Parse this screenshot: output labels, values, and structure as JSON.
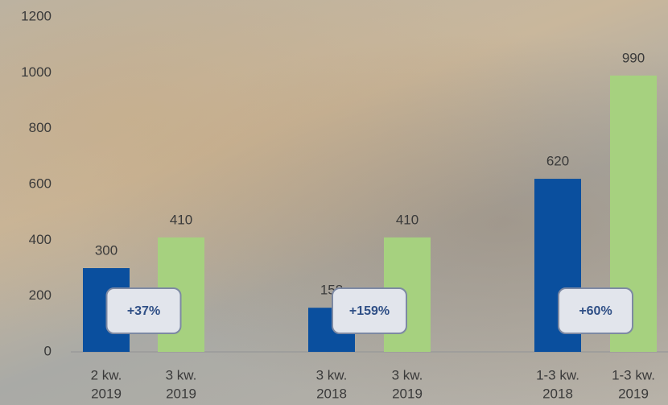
{
  "chart_data": {
    "type": "bar",
    "categories": [
      [
        "2 kw.",
        "2019"
      ],
      [
        "3 kw.",
        "2019"
      ],
      [
        "3 kw.",
        "2018"
      ],
      [
        "3 kw.",
        "2019"
      ],
      [
        "1-3 kw.",
        "2018"
      ],
      [
        "1-3 kw.",
        "2019"
      ]
    ],
    "values": [
      300,
      410,
      158,
      410,
      620,
      990
    ],
    "colors": [
      "#0a4f9e",
      "#a6d17f",
      "#0a4f9e",
      "#a6d17f",
      "#0a4f9e",
      "#a6d17f"
    ],
    "annotations": [
      "+37%",
      "+159%",
      "+60%"
    ],
    "ylim": [
      0,
      1200
    ],
    "yticks": [
      0,
      200,
      400,
      600,
      800,
      1000,
      1200
    ],
    "grid": false
  }
}
